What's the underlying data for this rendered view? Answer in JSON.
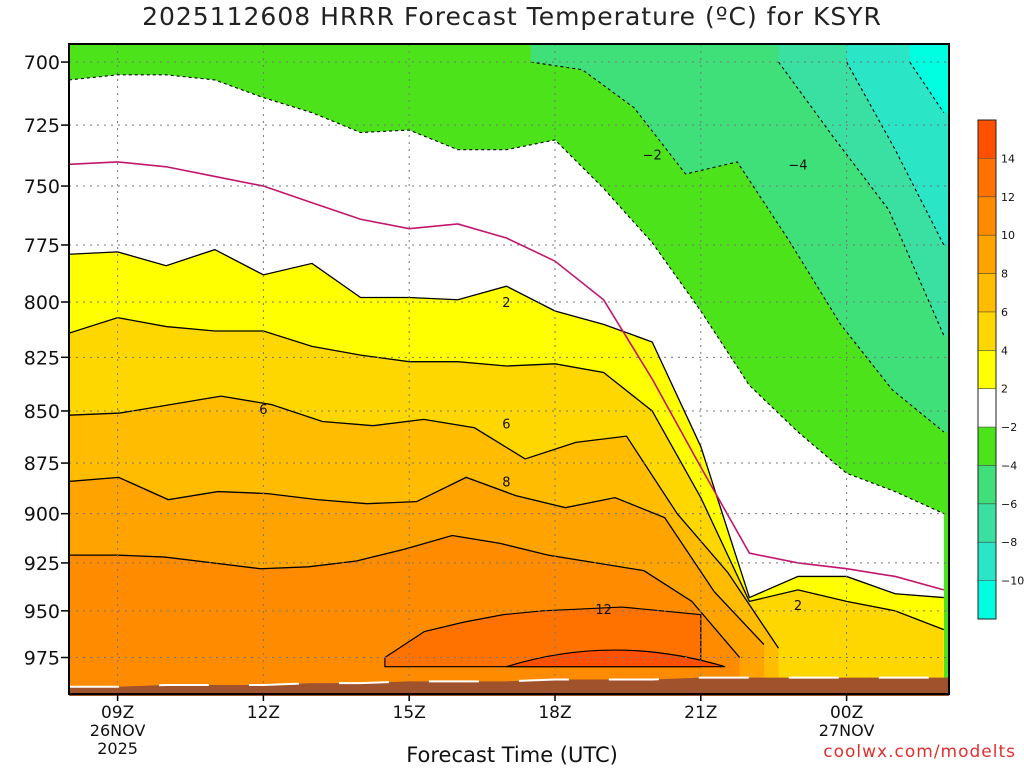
{
  "title": "2025112608 HRRR Forecast Temperature (ºC) for KSYR",
  "xlabel": "Forecast Time (UTC)",
  "credit": "coolwx.com/modelts",
  "colors": {
    "above_14": "#ff5000",
    "c12_14": "#ff7200",
    "c10_12": "#ff8c00",
    "c8_10": "#ffa300",
    "c6_8": "#ffbc00",
    "c4_6": "#ffd700",
    "c2_4": "#ffff00",
    "cm2_2": "#ffffff",
    "cm4_m2": "#4ce31b",
    "cm6_m4": "#3fe07a",
    "cm8_m6": "#3ae0a2",
    "cm10_m8": "#2ae6c7",
    "below_m10": "#00ffe0",
    "ground": "#a0522d",
    "freezing_line": "#c2166e"
  },
  "chart_data": {
    "type": "contour",
    "y_axis": {
      "label": "",
      "unit": "hPa",
      "reversed": true,
      "ticks": [
        "700",
        "725",
        "750",
        "775",
        "800",
        "825",
        "850",
        "875",
        "900",
        "925",
        "950",
        "975"
      ]
    },
    "x_axis": {
      "label": "Forecast Time (UTC)",
      "ticks": [
        "09Z",
        "12Z",
        "15Z",
        "18Z",
        "21Z",
        "00Z"
      ],
      "date_labels": [
        {
          "tick": "09Z",
          "lines": [
            "26NOV",
            "2025"
          ]
        },
        {
          "tick": "00Z",
          "lines": [
            "27NOV"
          ]
        }
      ]
    },
    "colorbar": {
      "boundaries": [
        -10,
        -8,
        -6,
        -4,
        -2,
        2,
        4,
        6,
        8,
        10,
        12,
        14
      ],
      "labels": [
        "14",
        "12",
        "10",
        "8",
        "6",
        "4",
        "2",
        "−2",
        "−4",
        "−6",
        "−8",
        "−10"
      ]
    },
    "times_hours_from_08z": [
      0,
      1,
      2,
      3,
      4,
      5,
      6,
      7,
      8,
      9,
      10,
      11,
      12,
      13,
      14,
      15,
      16,
      17,
      18
    ],
    "isotherms": [
      {
        "level": 12,
        "start": 6.5,
        "end": 13.0,
        "ptop": [
          975,
          961,
          956,
          952,
          950,
          949,
          948,
          950,
          952
        ]
      },
      {
        "level": 10,
        "start": 0,
        "end": 13.8,
        "ptop": [
          921,
          921,
          922,
          925,
          928,
          927,
          924,
          918,
          911,
          915,
          921,
          925,
          929,
          945,
          975
        ]
      },
      {
        "level": 8,
        "start": 0,
        "end": 14.3,
        "ptop": [
          884,
          882,
          893,
          889,
          890,
          893,
          895,
          894,
          882,
          891,
          897,
          892,
          902,
          940,
          968
        ]
      },
      {
        "level": 6,
        "start": 0,
        "end": 14.6,
        "ptop": [
          852,
          851,
          847,
          843,
          847,
          855,
          857,
          854,
          858,
          873,
          865,
          862,
          900,
          930,
          970
        ]
      },
      {
        "level": 4,
        "start": 0,
        "end": 18,
        "ptop": [
          814,
          807,
          811,
          813,
          813,
          820,
          824,
          827,
          827,
          829,
          828,
          832,
          850,
          892,
          945,
          939,
          945,
          950,
          960
        ]
      },
      {
        "level": 2,
        "start": 0,
        "end": 18,
        "ptop": [
          779,
          778,
          784,
          777,
          788,
          783,
          798,
          798,
          799,
          793,
          804,
          810,
          818,
          867,
          943,
          932,
          932,
          941,
          943
        ]
      },
      {
        "level": 0,
        "start": 0,
        "end": 18,
        "ptop": [
          741,
          740,
          742,
          746,
          750,
          757,
          764,
          768,
          766,
          772,
          782,
          799,
          835,
          877,
          920,
          925,
          928,
          932,
          939
        ]
      },
      {
        "level": -2,
        "start": 0,
        "end": 18,
        "ptop": [
          707,
          705,
          705,
          707,
          714,
          720,
          728,
          727,
          735,
          735,
          731,
          751,
          774,
          804,
          838,
          860,
          880,
          889,
          900
        ]
      },
      {
        "level": -4,
        "start": 9.5,
        "end": 18,
        "ptop": [
          700,
          703,
          718,
          745,
          740,
          773,
          810,
          840,
          860
        ]
      },
      {
        "level": -6,
        "start": 14.6,
        "end": 18,
        "ptop": [
          700,
          730,
          760,
          815
        ]
      },
      {
        "level": -8,
        "start": 16.0,
        "end": 18,
        "ptop": [
          700,
          735,
          775
        ]
      },
      {
        "level": -10,
        "start": 17.3,
        "end": 18,
        "ptop": [
          700,
          720
        ]
      }
    ],
    "contour_labels": [
      {
        "value": "2",
        "time": 9.0,
        "p": 800
      },
      {
        "value": "6",
        "time": 4.0,
        "p": 849
      },
      {
        "value": "6",
        "time": 9.0,
        "p": 856
      },
      {
        "value": "8",
        "time": 9.0,
        "p": 884
      },
      {
        "value": "12",
        "time": 11.0,
        "p": 949
      },
      {
        "value": "2",
        "time": 15.0,
        "p": 947
      },
      {
        "value": "−2",
        "time": 12.0,
        "p": 737
      },
      {
        "value": "−4",
        "time": 15.0,
        "p": 741
      }
    ],
    "surface_p": [
      991,
      991,
      990,
      990,
      990,
      989,
      989,
      988,
      988,
      988,
      987,
      987,
      987,
      986,
      986,
      986,
      986,
      986,
      986
    ]
  }
}
